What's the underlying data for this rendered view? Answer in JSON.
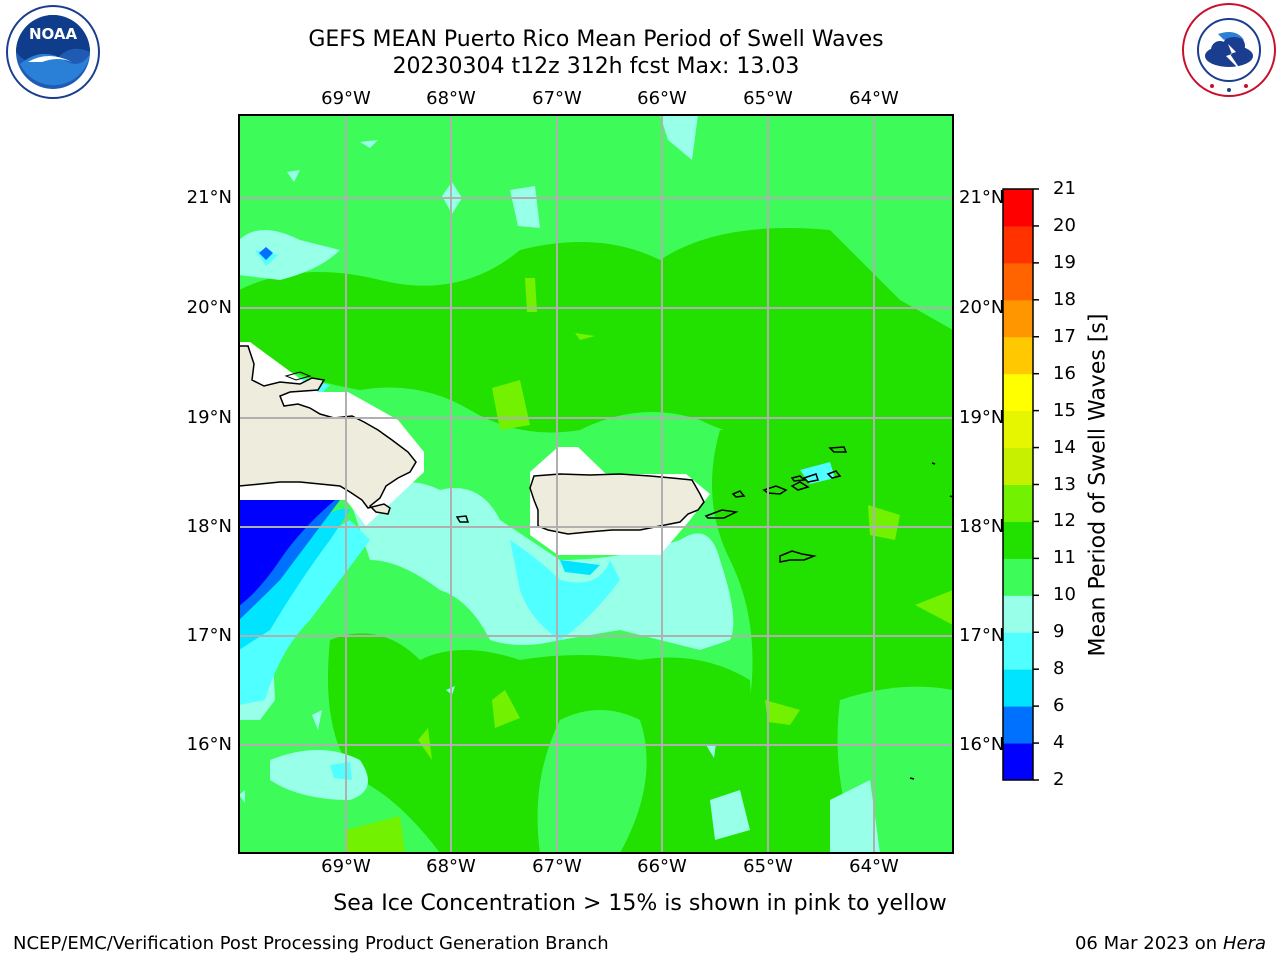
{
  "title_line1": "GEFS MEAN Puerto Rico Mean Period of Swell Waves",
  "title_line2": "20230304 t12z 312h fcst   Max: 13.03",
  "lon_labels": [
    "69°W",
    "68°W",
    "67°W",
    "66°W",
    "65°W",
    "64°W"
  ],
  "lat_labels": [
    "21°N",
    "20°N",
    "19°N",
    "18°N",
    "17°N",
    "16°N"
  ],
  "colorbar": {
    "label": "Mean Period of Swell Waves [s]",
    "ticks": [
      "2",
      "4",
      "6",
      "8",
      "9",
      "10",
      "11",
      "12",
      "13",
      "14",
      "15",
      "16",
      "17",
      "18",
      "19",
      "20",
      "21"
    ],
    "colors": [
      "#0000ff",
      "#0070ff",
      "#00e4ff",
      "#50ffff",
      "#98ffe8",
      "#3dfc59",
      "#22e000",
      "#72f200",
      "#c6f000",
      "#e6f500",
      "#ffff00",
      "#ffc800",
      "#ff9600",
      "#ff6400",
      "#ff3200",
      "#ff0000"
    ]
  },
  "caption": "Sea Ice Concentration > 15% is shown in pink to yellow",
  "footer_left": "NCEP/EMC/Verification Post Processing Product Generation Branch",
  "footer_date": "06 Mar 2023 on",
  "footer_machine": "Hera",
  "logos": {
    "noaa": {
      "icon": "noaa-logo-icon",
      "text": "NOAA"
    },
    "nws": {
      "icon": "nws-logo-icon",
      "text": "NATIONAL WEATHER SERVICE"
    }
  }
}
